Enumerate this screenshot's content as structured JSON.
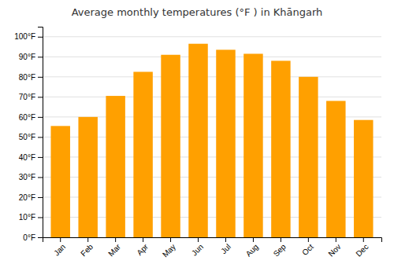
{
  "chart_data": {
    "type": "bar",
    "title": "Average monthly temperatures (°F ) in Khāngarh",
    "categories": [
      "Jan",
      "Feb",
      "Mar",
      "Apr",
      "May",
      "Jun",
      "Jul",
      "Aug",
      "Sep",
      "Oct",
      "Nov",
      "Dec"
    ],
    "values": [
      55.5,
      60.0,
      70.5,
      82.5,
      91.0,
      96.5,
      93.5,
      91.5,
      88.0,
      80.0,
      68.0,
      58.5
    ],
    "color": "#FFA000",
    "ylim": [
      0,
      105
    ],
    "yticks": [
      {
        "value": 0,
        "label": "0°F"
      },
      {
        "value": 10,
        "label": "10°F"
      },
      {
        "value": 20,
        "label": "20°F"
      },
      {
        "value": 30,
        "label": "30°F"
      },
      {
        "value": 40,
        "label": "40°F"
      },
      {
        "value": 50,
        "label": "50°F"
      },
      {
        "value": 60,
        "label": "60°F"
      },
      {
        "value": 70,
        "label": "70°F"
      },
      {
        "value": 80,
        "label": "80°F"
      },
      {
        "value": 90,
        "label": "90°F"
      },
      {
        "value": 100,
        "label": "100°F"
      }
    ],
    "grid": true
  }
}
